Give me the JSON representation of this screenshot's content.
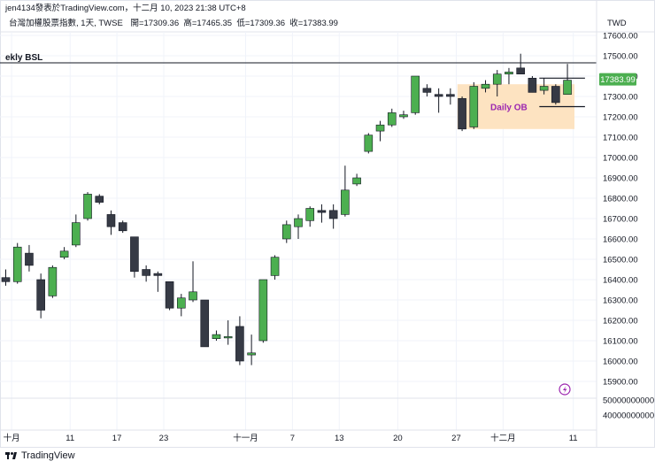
{
  "header": {
    "author_line": "jen4134發表於TradingView.com，十二月 10, 2023 21:38 UTC+8",
    "symbol_line": "台灣加權股票指數, 1天, TWSE",
    "ohlc_line": "開=17309.36  高=17465.35  低=17309.36  收=17383.99"
  },
  "brand": {
    "name": "TradingView"
  },
  "chart_data": {
    "type": "candlestick",
    "currency": "TWD",
    "y_ticks": [
      17600,
      17500,
      17400,
      17300,
      17200,
      17100,
      17000,
      16900,
      16800,
      16700,
      16600,
      16500,
      16400,
      16300,
      16200,
      16100,
      16000,
      15900
    ],
    "y_tick_labels": [
      "17600.00",
      "17500.00",
      "17400.00",
      "17300.00",
      "17200.00",
      "17100.00",
      "17000.00",
      "16900.00",
      "16800.00",
      "16700.00",
      "16600.00",
      "16500.00",
      "16400.00",
      "16300.00",
      "16200.00",
      "16100.00",
      "16000.00",
      "15900.00"
    ],
    "price_ylim": [
      15830,
      17665
    ],
    "volume_ticks": [
      "50000000000",
      "40000000000"
    ],
    "x_ticks": [
      {
        "label": "十月",
        "index": 0.5
      },
      {
        "label": "11",
        "index": 5.5
      },
      {
        "label": "17",
        "index": 9.5
      },
      {
        "label": "23",
        "index": 13.5
      },
      {
        "label": "十一月",
        "index": 20.5
      },
      {
        "label": "7",
        "index": 24.5
      },
      {
        "label": "13",
        "index": 28.5
      },
      {
        "label": "20",
        "index": 33.5
      },
      {
        "label": "27",
        "index": 38.5
      },
      {
        "label": "十二月",
        "index": 42.5
      },
      {
        "label": "11",
        "index": 48.5
      }
    ],
    "candles": [
      {
        "o": 16410,
        "h": 16450,
        "l": 16370,
        "c": 16390
      },
      {
        "o": 16390,
        "h": 16580,
        "l": 16380,
        "c": 16560
      },
      {
        "o": 16530,
        "h": 16570,
        "l": 16440,
        "c": 16470
      },
      {
        "o": 16400,
        "h": 16430,
        "l": 16210,
        "c": 16250
      },
      {
        "o": 16320,
        "h": 16470,
        "l": 16310,
        "c": 16460
      },
      {
        "o": 16510,
        "h": 16560,
        "l": 16500,
        "c": 16540
      },
      {
        "o": 16570,
        "h": 16720,
        "l": 16560,
        "c": 16680
      },
      {
        "o": 16700,
        "h": 16830,
        "l": 16690,
        "c": 16820
      },
      {
        "o": 16810,
        "h": 16820,
        "l": 16770,
        "c": 16780
      },
      {
        "o": 16720,
        "h": 16740,
        "l": 16620,
        "c": 16660
      },
      {
        "o": 16680,
        "h": 16690,
        "l": 16630,
        "c": 16640
      },
      {
        "o": 16610,
        "h": 16610,
        "l": 16410,
        "c": 16440
      },
      {
        "o": 16450,
        "h": 16470,
        "l": 16390,
        "c": 16420
      },
      {
        "o": 16430,
        "h": 16440,
        "l": 16340,
        "c": 16420
      },
      {
        "o": 16390,
        "h": 16390,
        "l": 16250,
        "c": 16260
      },
      {
        "o": 16260,
        "h": 16330,
        "l": 16220,
        "c": 16310
      },
      {
        "o": 16300,
        "h": 16490,
        "l": 16290,
        "c": 16340
      },
      {
        "o": 16300,
        "h": 16300,
        "l": 16070,
        "c": 16070
      },
      {
        "o": 16110,
        "h": 16150,
        "l": 16100,
        "c": 16130
      },
      {
        "o": 16120,
        "h": 16200,
        "l": 16080,
        "c": 16120
      },
      {
        "o": 16170,
        "h": 16220,
        "l": 15980,
        "c": 16000
      },
      {
        "o": 16030,
        "h": 16130,
        "l": 15980,
        "c": 16040
      },
      {
        "o": 16100,
        "h": 16400,
        "l": 16090,
        "c": 16400
      },
      {
        "o": 16420,
        "h": 16520,
        "l": 16400,
        "c": 16510
      },
      {
        "o": 16600,
        "h": 16690,
        "l": 16580,
        "c": 16670
      },
      {
        "o": 16660,
        "h": 16720,
        "l": 16600,
        "c": 16700
      },
      {
        "o": 16690,
        "h": 16760,
        "l": 16660,
        "c": 16750
      },
      {
        "o": 16740,
        "h": 16770,
        "l": 16680,
        "c": 16730
      },
      {
        "o": 16740,
        "h": 16770,
        "l": 16650,
        "c": 16700
      },
      {
        "o": 16720,
        "h": 16960,
        "l": 16710,
        "c": 16840
      },
      {
        "o": 16870,
        "h": 16920,
        "l": 16860,
        "c": 16900
      },
      {
        "o": 17030,
        "h": 17120,
        "l": 17020,
        "c": 17110
      },
      {
        "o": 17130,
        "h": 17180,
        "l": 17080,
        "c": 17160
      },
      {
        "o": 17160,
        "h": 17240,
        "l": 17150,
        "c": 17220
      },
      {
        "o": 17200,
        "h": 17230,
        "l": 17190,
        "c": 17210
      },
      {
        "o": 17220,
        "h": 17400,
        "l": 17210,
        "c": 17400
      },
      {
        "o": 17340,
        "h": 17360,
        "l": 17300,
        "c": 17320
      },
      {
        "o": 17310,
        "h": 17340,
        "l": 17220,
        "c": 17300
      },
      {
        "o": 17310,
        "h": 17340,
        "l": 17260,
        "c": 17300
      },
      {
        "o": 17290,
        "h": 17300,
        "l": 17130,
        "c": 17140
      },
      {
        "o": 17150,
        "h": 17370,
        "l": 17140,
        "c": 17350
      },
      {
        "o": 17340,
        "h": 17380,
        "l": 17320,
        "c": 17360
      },
      {
        "o": 17360,
        "h": 17430,
        "l": 17300,
        "c": 17410
      },
      {
        "o": 17410,
        "h": 17440,
        "l": 17360,
        "c": 17420
      },
      {
        "o": 17440,
        "h": 17510,
        "l": 17410,
        "c": 17410
      },
      {
        "o": 17390,
        "h": 17400,
        "l": 17320,
        "c": 17320
      },
      {
        "o": 17330,
        "h": 17390,
        "l": 17310,
        "c": 17350
      },
      {
        "o": 17350,
        "h": 17360,
        "l": 17260,
        "c": 17270
      },
      {
        "o": 17310,
        "h": 17460,
        "l": 17310,
        "c": 17380
      }
    ],
    "annotations": {
      "weekly_bsl": {
        "label": "ekly BSL",
        "price": 17465
      },
      "daily_ob": {
        "label": "Daily OB",
        "from_index": 38.6,
        "to_index": 48.6,
        "low": 17140,
        "high": 17360
      },
      "range_top": {
        "price": 17390,
        "from_index": 45.6,
        "to_index": 49.5
      },
      "range_bottom": {
        "price": 17250,
        "from_index": 45.6,
        "to_index": 49.5
      },
      "last_price_label": {
        "text": "17383.99",
        "price": 17383.99
      }
    },
    "colors": {
      "up": "#4caf50",
      "down": "#363a45",
      "grid": "#f0f3fa",
      "ob_zone": "#fde3c1",
      "ob_text": "#9c27b0",
      "last_price": "#4caf50",
      "alert_icon": "#9c27b0"
    }
  }
}
